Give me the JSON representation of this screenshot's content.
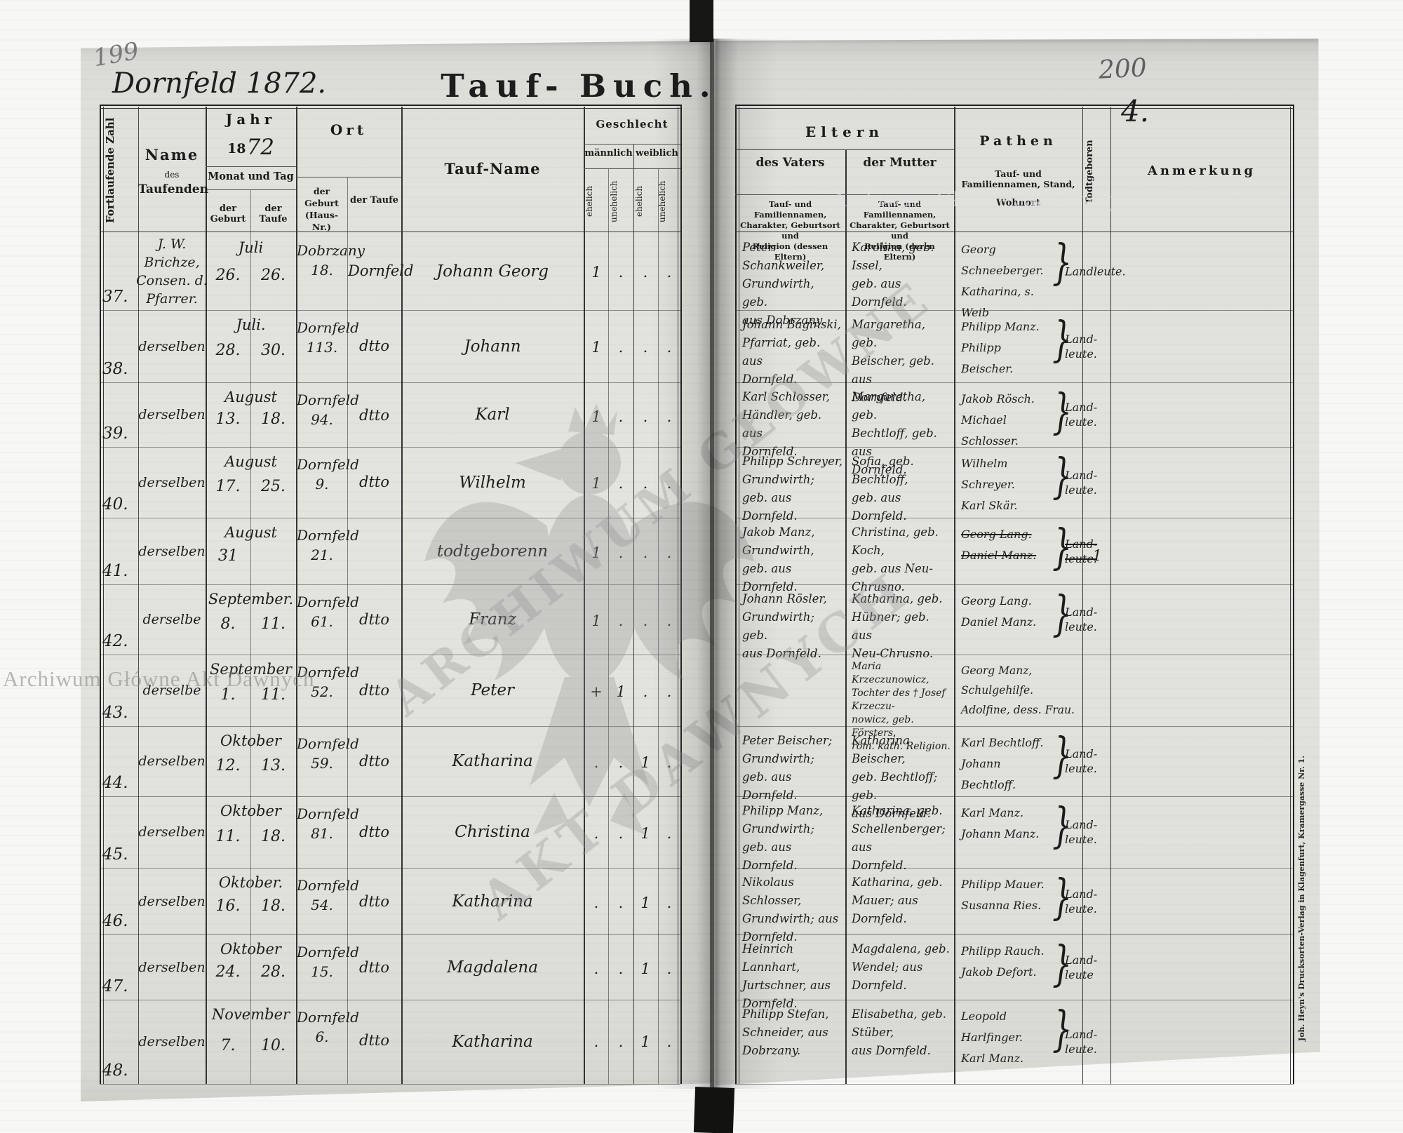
{
  "document": {
    "page_number_left": "199",
    "page_number_right": "200",
    "folio_number": "4.",
    "heading_handwritten": "Dornfeld 1872.",
    "title_part1": "Tauf-",
    "title_part2": "Buch."
  },
  "header_left": {
    "col_zahl": "Fortlaufende Zahl",
    "col_name_1": "Name",
    "col_name_2": "des",
    "col_name_3": "Taufenden",
    "col_jahr": "Jahr",
    "jahr_printed": "18",
    "jahr_hand": "72",
    "monat_und_tag": "Monat und Tag",
    "der_geburt": "der Geburt",
    "der_taufe": "der Taufe",
    "col_ort": "Ort",
    "ort_geburt": "der Geburt\n(Haus-Nr.)",
    "ort_taufe": "der Taufe",
    "col_taufname": "Tauf-Name",
    "col_geschlecht": "Geschlecht",
    "maennlich": "männlich",
    "weiblich": "weiblich",
    "ehelich": "ehelich",
    "unehelich": "unehelich"
  },
  "header_right": {
    "eltern": "Eltern",
    "des_vaters": "des Vaters",
    "vaters_sub": "Tauf- und Familiennamen,\nCharakter, Geburtsort und\nReligion (dessen Eltern)",
    "der_mutter": "der Mutter",
    "mutter_sub": "Tauf- und Familiennamen,\nCharakter, Geburtsort und\nReligion (deren Eltern)",
    "pathen": "Pathen",
    "pathen_sub1": "Tauf- und Familiennamen, Stand,",
    "pathen_sub2": "Wohnort",
    "todtgeboren": "Todtgeboren",
    "anmerkung": "Anmerkung"
  },
  "imprint": "Joh. Heyn's Drucksorten-Verlag in Klagenfurt, Kramergasse Nr. 1.",
  "watermarks": {
    "diagonal_line1": "ARCHIWUM GŁÓWNE",
    "diagonal_line2": "AKT DAWNYCH",
    "horizontal": "Archiwum Główne Akt Dawnych"
  },
  "rows": [
    {
      "num": "37.",
      "name": "J. W. Brichze,\nConsen. d. Pfarrer.",
      "month": "Juli",
      "born": "26.",
      "baptized": "26.",
      "birthplace": "Dobrzany\n18.",
      "baptism_place": "Dornfeld",
      "tauf_name": "Johann Georg",
      "g": [
        "1",
        ".",
        ".",
        "."
      ],
      "vater": "Peter Schankweiler,\nGrundwirth, geb.\naus Dobrzany.",
      "mutter": "Karolina, geb. Issel,\ngeb. aus Dornfeld.",
      "pathen": "Georg Schneeberger.\nKatharina, s. Weib",
      "pathen_brace": "Landleute.",
      "pathen_struck": false,
      "todt": "",
      "anmerkung": ""
    },
    {
      "num": "38.",
      "name": "derselben",
      "month": "Juli.",
      "born": "28.",
      "baptized": "30.",
      "birthplace": "Dornfeld\n113.",
      "baptism_place": "dtto",
      "tauf_name": "Johann",
      "g": [
        "1",
        ".",
        ".",
        "."
      ],
      "vater": "Johann Bagiński,\nPfarriat, geb. aus\nDornfeld.",
      "mutter": "Margaretha, geb.\nBeischer, geb. aus\nDornfeld.",
      "pathen": "Philipp Manz.\nPhilipp Beischer.",
      "pathen_brace": "Land-\nleute.",
      "pathen_struck": false,
      "todt": "",
      "anmerkung": ""
    },
    {
      "num": "39.",
      "name": "derselben",
      "month": "August",
      "born": "13.",
      "baptized": "18.",
      "birthplace": "Dornfeld\n94.",
      "baptism_place": "dtto",
      "tauf_name": "Karl",
      "g": [
        "1",
        ".",
        ".",
        "."
      ],
      "vater": "Karl Schlosser,\nHändler, geb. aus\nDornfeld.",
      "mutter": "Margaretha, geb.\nBechtloff, geb. aus\nDornfeld.",
      "pathen": "Jakob Rösch.\nMichael Schlosser.",
      "pathen_brace": "Land-\nleute.",
      "pathen_struck": false,
      "todt": "",
      "anmerkung": ""
    },
    {
      "num": "40.",
      "name": "derselben",
      "month": "August",
      "born": "17.",
      "baptized": "25.",
      "birthplace": "Dornfeld\n9.",
      "baptism_place": "dtto",
      "tauf_name": "Wilhelm",
      "g": [
        "1",
        ".",
        ".",
        "."
      ],
      "vater": "Philipp Schreyer,\nGrundwirth; geb. aus\nDornfeld.",
      "mutter": "Sofia, geb. Bechtloff,\ngeb. aus Dornfeld.",
      "pathen": "Wilhelm Schreyer.\nKarl Skär.",
      "pathen_brace": "Land-\nleute.",
      "pathen_struck": false,
      "todt": "",
      "anmerkung": ""
    },
    {
      "num": "41.",
      "name": "derselben",
      "month": "August",
      "born": "31",
      "baptized": "",
      "birthplace": "Dornfeld\n21.",
      "baptism_place": "",
      "tauf_name": "todtgeborenn",
      "g": [
        "1",
        ".",
        ".",
        "."
      ],
      "vater": "Jakob Manz,\nGrundwirth, geb. aus\nDornfeld.",
      "mutter": "Christina, geb. Koch,\ngeb. aus Neu-\nChrusno.",
      "pathen": "Georg Lang.\nDaniel Manz.",
      "pathen_brace": "Land-\nleute.",
      "pathen_struck": true,
      "todt": "1",
      "anmerkung": ""
    },
    {
      "num": "42.",
      "name": "derselbe",
      "month": "September.",
      "born": "8.",
      "baptized": "11.",
      "birthplace": "Dornfeld\n61.",
      "baptism_place": "dtto",
      "tauf_name": "Franz",
      "g": [
        "1",
        ".",
        ".",
        "."
      ],
      "vater": "Johann Rösler,\nGrundwirth; geb.\naus Dornfeld.",
      "mutter": "Katharina, geb.\nHübner; geb. aus\nNeu-Chrusno.",
      "pathen": "Georg Lang.\nDaniel Manz.",
      "pathen_brace": "Land-\nleute.",
      "pathen_struck": false,
      "todt": "",
      "anmerkung": ""
    },
    {
      "num": "43.",
      "name": "derselbe",
      "month": "September",
      "born": "1.",
      "baptized": "11.",
      "birthplace": "Dornfeld\n52.",
      "baptism_place": "dtto",
      "tauf_name": "Peter",
      "g": [
        "+",
        "1",
        ".",
        "."
      ],
      "vater": "",
      "mutter": "Maria Krzeczunowicz,\nTochter des † Josef Krzeczu-\nnowicz, geb. Försters.\nröm. kath. Religion.",
      "pathen": "Georg Manz, Schulgehilfe.\nAdolfine, dess. Frau.",
      "pathen_brace": "",
      "pathen_struck": false,
      "todt": "",
      "anmerkung": ""
    },
    {
      "num": "44.",
      "name": "derselben",
      "month": "Oktober",
      "born": "12.",
      "baptized": "13.",
      "birthplace": "Dornfeld\n59.",
      "baptism_place": "dtto",
      "tauf_name": "Katharina",
      "g": [
        ".",
        ".",
        "1",
        "."
      ],
      "vater": "Peter Beischer;\nGrundwirth; geb. aus\nDornfeld.",
      "mutter": "Katharina Beischer,\ngeb. Bechtloff; geb.\naus Dornfeld.",
      "pathen": "Karl Bechtloff.\nJohann Bechtloff.",
      "pathen_brace": "Land-\nleute.",
      "pathen_struck": false,
      "todt": "",
      "anmerkung": ""
    },
    {
      "num": "45.",
      "name": "derselben",
      "month": "Oktober",
      "born": "11.",
      "baptized": "18.",
      "birthplace": "Dornfeld\n81.",
      "baptism_place": "dtto",
      "tauf_name": "Christina",
      "g": [
        ".",
        ".",
        "1",
        "."
      ],
      "vater": "Philipp Manz,\nGrundwirth; geb. aus\nDornfeld.",
      "mutter": "Katharina, geb.\nSchellenberger; aus\nDornfeld.",
      "pathen": "Karl Manz.\nJohann Manz.",
      "pathen_brace": "Land-\nleute.",
      "pathen_struck": false,
      "todt": "",
      "anmerkung": ""
    },
    {
      "num": "46.",
      "name": "derselben",
      "month": "Oktober.",
      "born": "16.",
      "baptized": "18.",
      "birthplace": "Dornfeld\n54.",
      "baptism_place": "dtto",
      "tauf_name": "Katharina",
      "g": [
        ".",
        ".",
        "1",
        "."
      ],
      "vater": "Nikolaus Schlosser,\nGrundwirth; aus\nDornfeld.",
      "mutter": "Katharina, geb.\nMauer; aus Dornfeld.",
      "pathen": "Philipp Mauer.\nSusanna Ries.",
      "pathen_brace": "Land-\nleute.",
      "pathen_struck": false,
      "todt": "",
      "anmerkung": ""
    },
    {
      "num": "47.",
      "name": "derselben",
      "month": "Oktober",
      "born": "24.",
      "baptized": "28.",
      "birthplace": "Dornfeld\n15.",
      "baptism_place": "dtto",
      "tauf_name": "Magdalena",
      "g": [
        ".",
        ".",
        "1",
        "."
      ],
      "vater": "Heinrich Lannhart,\nJurtschner, aus\nDornfeld.",
      "mutter": "Magdalena, geb.\nWendel; aus Dornfeld.",
      "pathen": "Philipp Rauch.\nJakob Defort.",
      "pathen_brace": "Land-\nleute",
      "pathen_struck": false,
      "todt": "",
      "anmerkung": ""
    },
    {
      "num": "48.",
      "name": "derselben",
      "month": "November",
      "born": "7.",
      "baptized": "10.",
      "birthplace": "Dornfeld\n6.",
      "baptism_place": "dtto",
      "tauf_name": "Katharina",
      "g": [
        ".",
        ".",
        "1",
        "."
      ],
      "vater": "Philipp Stefan,\nSchneider, aus Dobrzany.",
      "mutter": "Elisabetha, geb. Stüber,\naus Dornfeld.",
      "pathen": "Leopold Harlfinger.\nKarl Manz.",
      "pathen_brace": "Land-\nleute.",
      "pathen_struck": false,
      "todt": "",
      "anmerkung": ""
    }
  ]
}
